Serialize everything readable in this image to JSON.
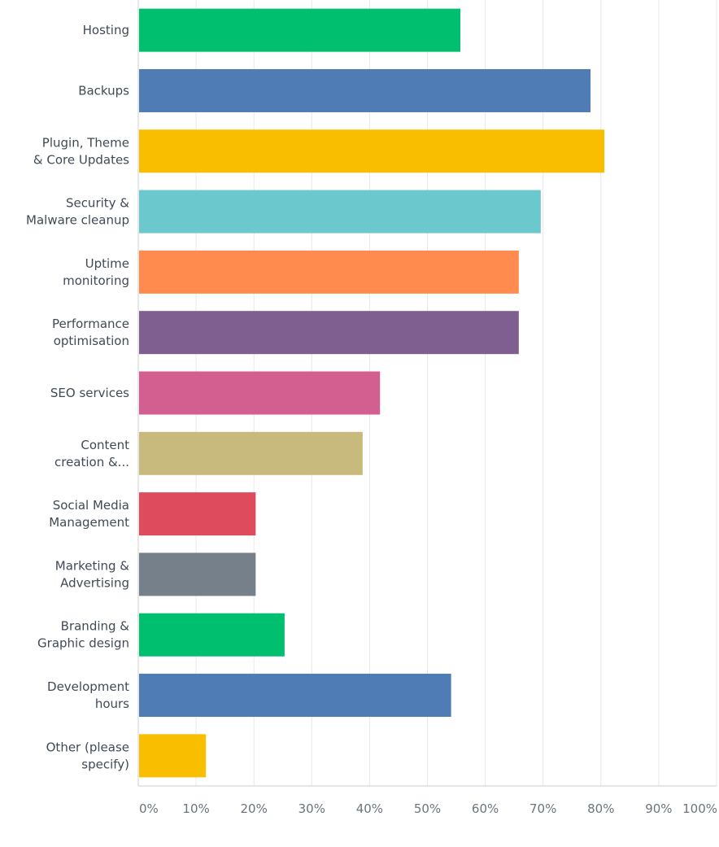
{
  "chart_data": {
    "type": "bar",
    "orientation": "horizontal",
    "title": "",
    "xlabel": "",
    "ylabel": "",
    "xlim": [
      0,
      100
    ],
    "grid": true,
    "categories": [
      [
        "Hosting"
      ],
      [
        "Backups"
      ],
      [
        "Plugin, Theme",
        "& Core Updates"
      ],
      [
        "Security &",
        "Malware cleanup"
      ],
      [
        "Uptime",
        "monitoring"
      ],
      [
        "Performance",
        "optimisation"
      ],
      [
        "SEO services"
      ],
      [
        "Content",
        "creation &..."
      ],
      [
        "Social Media",
        "Management"
      ],
      [
        "Marketing &",
        "Advertising"
      ],
      [
        "Branding &",
        "Graphic design"
      ],
      [
        "Development",
        "hours"
      ],
      [
        "Other (please",
        "specify)"
      ]
    ],
    "values": [
      55.7,
      78.2,
      80.6,
      69.6,
      65.8,
      65.8,
      41.8,
      38.8,
      20.3,
      20.3,
      25.3,
      54.1,
      11.7
    ],
    "colors": [
      "#00bf6f",
      "#507cb6",
      "#f9be00",
      "#6bc8cd",
      "#ff8b4f",
      "#7f5f90",
      "#d25f90",
      "#c8b97c",
      "#dd4b5c",
      "#76808a",
      "#00bf6f",
      "#507cb6",
      "#f9be00"
    ],
    "tick_labels": [
      "0%",
      "10%",
      "20%",
      "30%",
      "40%",
      "50%",
      "60%",
      "70%",
      "80%",
      "90%",
      "100%"
    ]
  }
}
